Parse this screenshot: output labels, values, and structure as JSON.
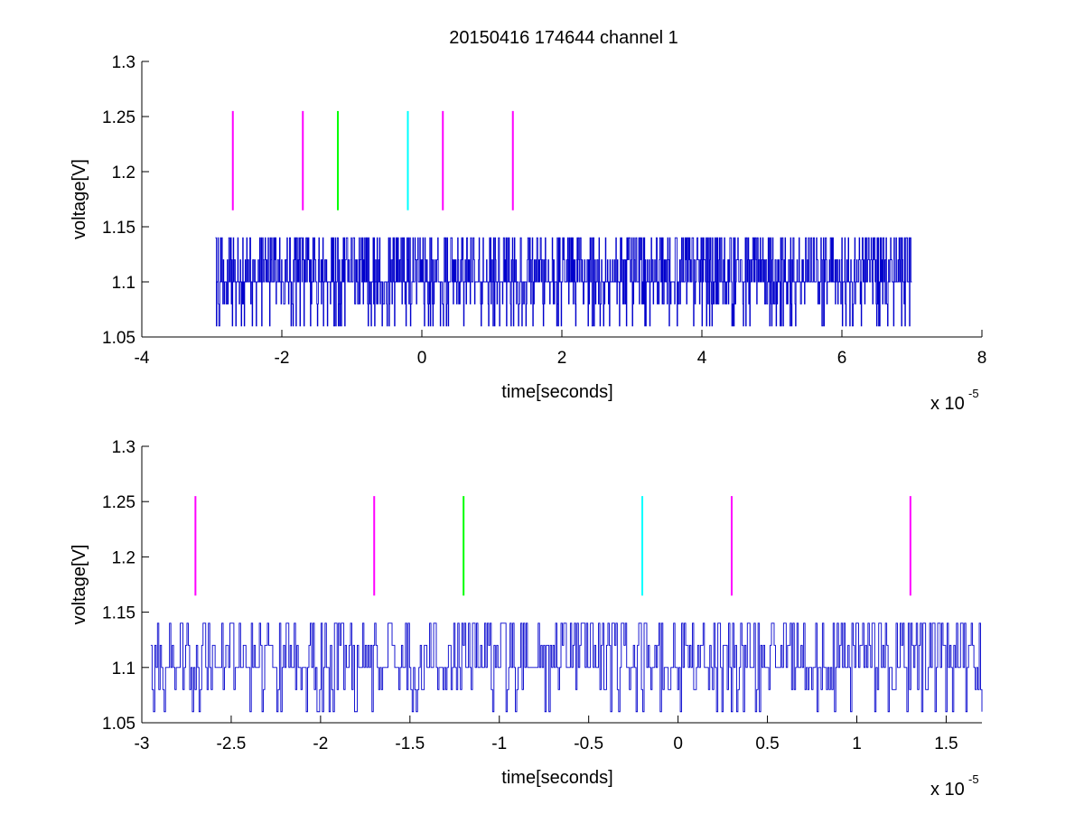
{
  "figure": {
    "title": "20150416 174644 channel 1"
  },
  "chart_data": [
    {
      "type": "line",
      "title": "20150416 174644 channel 1",
      "xlabel": "time[seconds]",
      "ylabel": "voltage[V]",
      "x_exponent_base": "x 10",
      "x_exponent": "-5",
      "xlim": [
        -4,
        8
      ],
      "ylim": [
        1.05,
        1.3
      ],
      "x_ticks": [
        -4,
        -2,
        0,
        2,
        4,
        6,
        8
      ],
      "x_tick_labels": [
        "-4",
        "-2",
        "0",
        "2",
        "4",
        "6",
        "8"
      ],
      "y_ticks": [
        1.05,
        1.1,
        1.15,
        1.2,
        1.25,
        1.3
      ],
      "y_tick_labels": [
        "1.05",
        "1.1",
        "1.15",
        "1.2",
        "1.25",
        "1.3"
      ],
      "grid": false,
      "signal": {
        "color": "#0000cc",
        "x_range": [
          -2.95,
          7.0
        ],
        "levels": [
          1.06,
          1.08,
          1.1,
          1.12,
          1.14
        ],
        "baseline": 1.1
      },
      "markers": [
        {
          "x": -2.7,
          "color": "#ff00ff",
          "y": [
            1.165,
            1.255
          ]
        },
        {
          "x": -1.7,
          "color": "#ff00ff",
          "y": [
            1.165,
            1.255
          ]
        },
        {
          "x": -1.2,
          "color": "#00ff00",
          "y": [
            1.165,
            1.255
          ]
        },
        {
          "x": -0.2,
          "color": "#00ffff",
          "y": [
            1.165,
            1.255
          ]
        },
        {
          "x": 0.3,
          "color": "#ff00ff",
          "y": [
            1.165,
            1.255
          ]
        },
        {
          "x": 1.3,
          "color": "#ff00ff",
          "y": [
            1.165,
            1.255
          ]
        }
      ]
    },
    {
      "type": "line",
      "title": "",
      "xlabel": "time[seconds]",
      "ylabel": "voltage[V]",
      "x_exponent_base": "x 10",
      "x_exponent": "-5",
      "xlim": [
        -3.0,
        1.7
      ],
      "ylim": [
        1.05,
        1.3
      ],
      "x_ticks": [
        -3,
        -2.5,
        -2,
        -1.5,
        -1,
        -0.5,
        0,
        0.5,
        1,
        1.5
      ],
      "x_tick_labels": [
        "-3",
        "-2.5",
        "-2",
        "-1.5",
        "-1",
        "-0.5",
        "0",
        "0.5",
        "1",
        "1.5"
      ],
      "y_ticks": [
        1.05,
        1.1,
        1.15,
        1.2,
        1.25,
        1.3
      ],
      "y_tick_labels": [
        "1.05",
        "1.1",
        "1.15",
        "1.2",
        "1.25",
        "1.3"
      ],
      "grid": false,
      "signal": {
        "color": "#0000cc",
        "x_range": [
          -2.95,
          1.7
        ],
        "levels": [
          1.06,
          1.08,
          1.1,
          1.12,
          1.14
        ],
        "baseline": 1.1
      },
      "markers": [
        {
          "x": -2.7,
          "color": "#ff00ff",
          "y": [
            1.165,
            1.255
          ]
        },
        {
          "x": -1.7,
          "color": "#ff00ff",
          "y": [
            1.165,
            1.255
          ]
        },
        {
          "x": -1.2,
          "color": "#00ff00",
          "y": [
            1.165,
            1.255
          ]
        },
        {
          "x": -0.2,
          "color": "#00ffff",
          "y": [
            1.165,
            1.255
          ]
        },
        {
          "x": 0.3,
          "color": "#ff00ff",
          "y": [
            1.165,
            1.255
          ]
        },
        {
          "x": 1.3,
          "color": "#ff00ff",
          "y": [
            1.165,
            1.255
          ]
        }
      ]
    }
  ]
}
